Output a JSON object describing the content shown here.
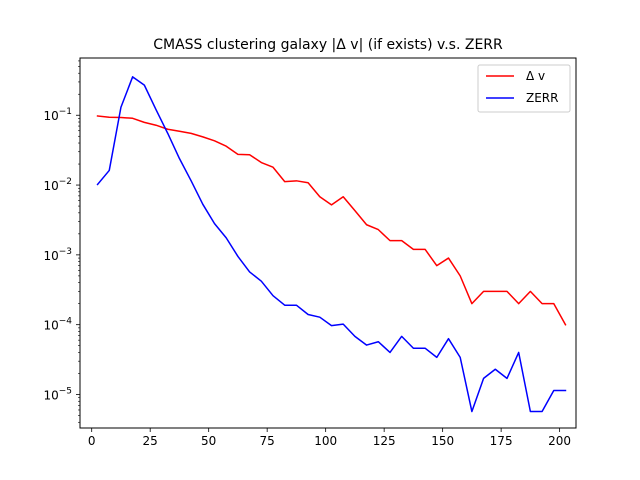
{
  "chart_data": {
    "type": "line",
    "title": "CMASS clustering galaxy |Δ v| (if exists) v.s. ZERR",
    "xlabel": "",
    "ylabel": "",
    "xlim": [
      -5,
      207
    ],
    "ylim_log10": [
      -5.48,
      -0.18
    ],
    "yscale": "log",
    "legend_position": "top-right",
    "grid": false,
    "x_ticks": [
      0,
      25,
      50,
      75,
      100,
      125,
      150,
      175,
      200
    ],
    "x_tick_labels": [
      "0",
      "25",
      "50",
      "75",
      "100",
      "125",
      "150",
      "175",
      "200"
    ],
    "y_ticks": [
      1e-05,
      0.0001,
      0.001,
      0.01,
      0.1
    ],
    "y_tick_labels": [
      {
        "base": "10",
        "exp": "−5"
      },
      {
        "base": "10",
        "exp": "−4"
      },
      {
        "base": "10",
        "exp": "−3"
      },
      {
        "base": "10",
        "exp": "−2"
      },
      {
        "base": "10",
        "exp": "−1"
      }
    ],
    "series": [
      {
        "name": "Δ v",
        "color": "#ff0000",
        "x": [
          2.5,
          7.5,
          12.5,
          17.5,
          22.5,
          27.5,
          32.5,
          37.5,
          42.5,
          47.5,
          52.5,
          57.5,
          62.5,
          67.5,
          72.5,
          77.5,
          82.5,
          87.5,
          92.5,
          97.5,
          102.5,
          107.5,
          112.5,
          117.5,
          122.5,
          127.5,
          132.5,
          137.5,
          142.5,
          147.5,
          152.5,
          157.5,
          162.5,
          167.5,
          172.5,
          177.5,
          182.5,
          187.5,
          192.5,
          197.5,
          202.5
        ],
        "values": [
          0.0975,
          0.0935,
          0.093,
          0.0905,
          0.079,
          0.072,
          0.063,
          0.059,
          0.055,
          0.049,
          0.043,
          0.036,
          0.0275,
          0.0272,
          0.021,
          0.018,
          0.0112,
          0.0115,
          0.0108,
          0.0068,
          0.0052,
          0.0068,
          0.0043,
          0.0027,
          0.0023,
          0.0016,
          0.0016,
          0.0012,
          0.0012,
          0.0007,
          0.0009,
          0.0005,
          0.0002,
          0.0003,
          0.0003,
          0.0003,
          0.0002,
          0.0003,
          0.0002,
          0.0002,
          0.0001
        ]
      },
      {
        "name": "ZERR",
        "color": "#0000ff",
        "x": [
          2.5,
          7.5,
          12.5,
          17.5,
          22.5,
          27.5,
          32.5,
          37.5,
          42.5,
          47.5,
          52.5,
          57.5,
          62.5,
          67.5,
          72.5,
          77.5,
          82.5,
          87.5,
          92.5,
          97.5,
          102.5,
          107.5,
          112.5,
          117.5,
          122.5,
          127.5,
          132.5,
          137.5,
          142.5,
          147.5,
          152.5,
          157.5,
          162.5,
          167.5,
          172.5,
          177.5,
          182.5,
          187.5,
          192.5,
          197.5,
          202.5
        ],
        "values": [
          0.0102,
          0.0162,
          0.13,
          0.355,
          0.27,
          0.12,
          0.055,
          0.024,
          0.0115,
          0.0053,
          0.0028,
          0.00175,
          0.00095,
          0.00057,
          0.00042,
          0.00026,
          0.00019,
          0.00019,
          0.00014,
          0.000128,
          9.7e-05,
          0.000102,
          6.8e-05,
          5.1e-05,
          5.7e-05,
          4e-05,
          6.8e-05,
          4.6e-05,
          4.6e-05,
          3.4e-05,
          6.3e-05,
          3.4e-05,
          5.7e-06,
          1.7e-05,
          2.3e-05,
          1.7e-05,
          4e-05,
          5.7e-06,
          5.7e-06,
          1.14e-05,
          1.14e-05
        ]
      }
    ]
  }
}
